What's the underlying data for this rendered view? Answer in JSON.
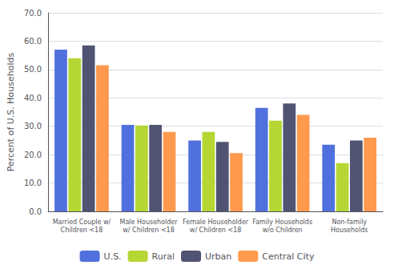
{
  "chart_data": {
    "type": "bar",
    "ylabel": "Percent of U.S. Households",
    "categories": [
      "Married Couple w/\nChildren <18",
      "Male Householder\nw/ Children <18",
      "Female Householder\nw/ Children <18",
      "Family Households\nw/o Children",
      "Non-family\nHouseholds"
    ],
    "series": [
      {
        "name": "U.S.",
        "values": [
          57.0,
          30.5,
          25.0,
          36.5,
          23.5
        ]
      },
      {
        "name": "Rural",
        "values": [
          54.0,
          30.3,
          28.0,
          32.0,
          17.0
        ]
      },
      {
        "name": "Urban",
        "values": [
          58.5,
          30.5,
          24.5,
          38.0,
          25.0
        ]
      },
      {
        "name": "Central City",
        "values": [
          51.5,
          28.0,
          20.5,
          34.0,
          26.0
        ]
      }
    ],
    "ylim": [
      0,
      70
    ],
    "yticks": [
      {
        "value": 0,
        "label": "0.0"
      },
      {
        "value": 10,
        "label": "10.0"
      },
      {
        "value": 20,
        "label": "20.0"
      },
      {
        "value": 30,
        "label": "30.0"
      },
      {
        "value": 40,
        "label": "40.0"
      },
      {
        "value": 50,
        "label": "50.0"
      },
      {
        "value": 60,
        "label": "60.0"
      },
      {
        "value": 70,
        "label": "70.0"
      }
    ],
    "grid": true,
    "legend": "bottom"
  }
}
